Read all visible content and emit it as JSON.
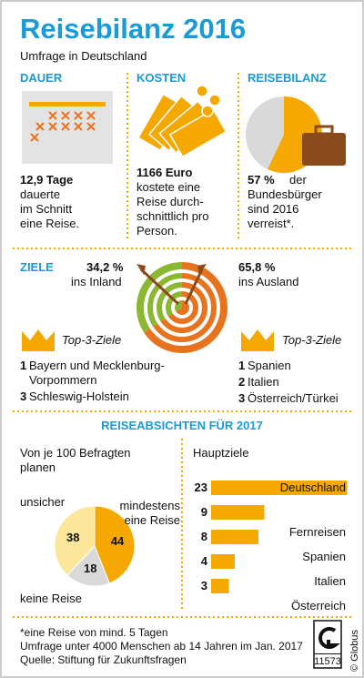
{
  "title": "Reisebilanz 2016",
  "subtitle": "Umfrage in Deutschland",
  "dauer": {
    "heading": "DAUER",
    "value_text": "12,9 Tage",
    "lines": [
      "dauerte",
      "im Schnitt",
      "eine Reise."
    ]
  },
  "kosten": {
    "heading": "KOSTEN",
    "value_text": "1166 Euro",
    "lines": [
      "kostete eine",
      "Reise durch-",
      "schnittlich pro",
      "Person."
    ]
  },
  "reisebilanz": {
    "heading": "REISEBILANZ",
    "lines": [
      "der",
      "Bundesbürger",
      "sind 2016",
      "verreist*."
    ]
  },
  "ziele": {
    "heading": "ZIELE",
    "top_title": "Top-3-Ziele",
    "inland_top": [
      {
        "rank": "1",
        "name": "Bayern und Mecklenburg-Vorpommern"
      },
      {
        "rank": "3",
        "name": "Schleswig-Holstein"
      }
    ],
    "ausland_top": [
      {
        "rank": "1",
        "name": "Spanien"
      },
      {
        "rank": "2",
        "name": "Italien"
      },
      {
        "rank": "3",
        "name": "Österreich/Türkei"
      }
    ]
  },
  "absichten": {
    "heading": "REISEABSICHTEN FÜR 2017"
  },
  "chart_data": [
    {
      "type": "pie",
      "values": [
        57
      ],
      "value_labels": [
        "57 %"
      ],
      "color": "#f5a800"
    },
    {
      "type": "target",
      "categories": [
        "ins Inland",
        "ins Ausland"
      ],
      "values": [
        34.2,
        65.8
      ],
      "value_labels": [
        "34,2 %",
        "65,8 %"
      ],
      "colors": [
        "#8ab833",
        "#e8731f"
      ]
    },
    {
      "type": "pie",
      "title": "Von je 100 Befragten planen",
      "categories": [
        "mindestens eine Reise",
        "keine Reise",
        "unsicher"
      ],
      "values": [
        44,
        18,
        38
      ],
      "colors": [
        "#f5a800",
        "#d9d9d9",
        "#fbe69a"
      ]
    },
    {
      "type": "bar",
      "title": "Hauptziele",
      "categories": [
        "Deutschland",
        "Fernreisen",
        "Spanien",
        "Italien",
        "Österreich"
      ],
      "values": [
        23,
        9,
        8,
        4,
        3
      ],
      "color": "#f5a800"
    }
  ],
  "footer": {
    "notes": [
      "*eine Reise von mind. 5 Tagen",
      "Umfrage unter 4000 Menschen ab 14 Jahren im Jan. 2017",
      "Quelle: Stiftung für Zukunftsfragen"
    ],
    "logo_number": "11573",
    "copyright": "© Globus"
  }
}
